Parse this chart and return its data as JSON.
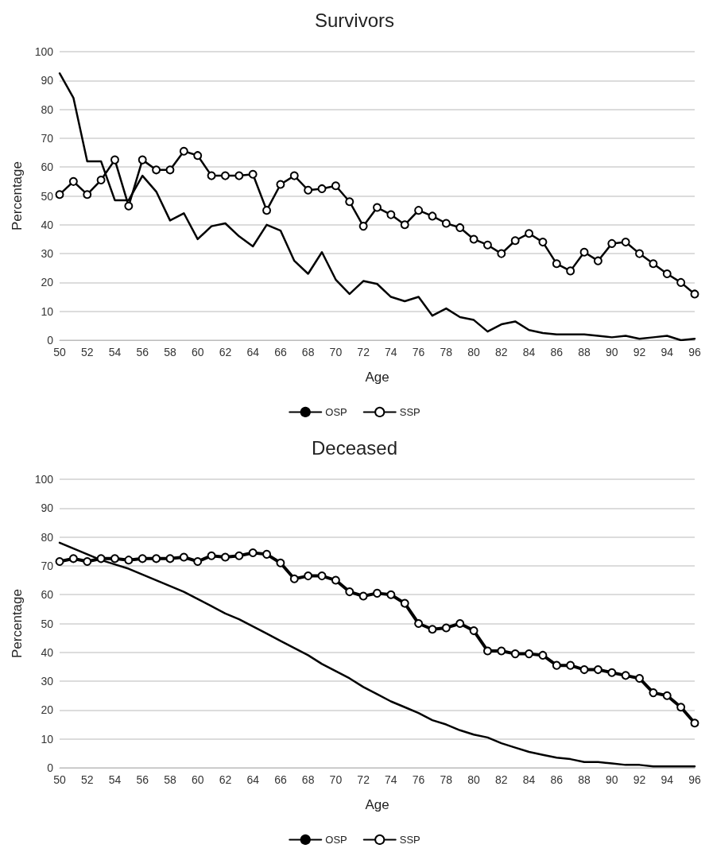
{
  "chart_data": [
    {
      "type": "line",
      "title": "Survivors",
      "xlabel": "Age",
      "ylabel": "Percentage",
      "categories": [
        "50",
        null,
        "52",
        null,
        "54",
        null,
        "56",
        null,
        "58",
        null,
        "60",
        null,
        "62",
        null,
        "64",
        null,
        "66",
        null,
        "68",
        null,
        "70",
        null,
        "72",
        null,
        "74",
        null,
        "76",
        null,
        "78",
        null,
        "80",
        null,
        "82",
        null,
        "84",
        null,
        "86",
        null,
        "88",
        null,
        "90",
        null,
        "92",
        null,
        "94",
        null,
        "96"
      ],
      "ylim": [
        0,
        100
      ],
      "yticks": [
        0,
        10,
        20,
        30,
        40,
        50,
        60,
        70,
        80,
        90,
        100
      ],
      "grid": "y",
      "legend": "bottom",
      "series": [
        {
          "name": "OSP",
          "color": "#000000",
          "marker": "none",
          "values": [
            92.5,
            84,
            62,
            62,
            48.5,
            48.5,
            57,
            51.5,
            41.5,
            44,
            35,
            39.5,
            40.5,
            36,
            32.5,
            40,
            38,
            27.5,
            23,
            30.5,
            21,
            16,
            20.5,
            19.5,
            15,
            13.5,
            15,
            8.5,
            11,
            8,
            7,
            3,
            5.5,
            6.5,
            3.5,
            2.5,
            2,
            2,
            2,
            1.5,
            1,
            1.5,
            0.5,
            1,
            1.5,
            0,
            0.5
          ]
        },
        {
          "name": "SSP",
          "color": "#000000",
          "marker": "circle",
          "values": [
            50.5,
            55,
            50.5,
            55.5,
            62.5,
            46.5,
            62.5,
            59,
            59,
            65.5,
            64,
            57,
            57,
            57,
            57.5,
            45,
            54,
            57,
            52,
            52.5,
            53.5,
            48,
            39.5,
            46,
            43.5,
            40,
            45,
            43,
            40.5,
            39,
            35,
            33,
            30,
            34.5,
            37,
            34,
            26.5,
            24,
            30.5,
            27.5,
            33.5,
            34,
            30,
            26.5,
            23,
            20,
            16
          ]
        }
      ]
    },
    {
      "type": "line",
      "title": "Deceased",
      "xlabel": "Age",
      "ylabel": "Percentage",
      "categories": [
        "50",
        null,
        "52",
        null,
        "54",
        null,
        "56",
        null,
        "58",
        null,
        "60",
        null,
        "62",
        null,
        "64",
        null,
        "66",
        null,
        "68",
        null,
        "70",
        null,
        "72",
        null,
        "74",
        null,
        "76",
        null,
        "78",
        null,
        "80",
        null,
        "82",
        null,
        "84",
        null,
        "86",
        null,
        "88",
        null,
        "90",
        null,
        "92",
        null,
        "94",
        null,
        "96"
      ],
      "ylim": [
        0,
        100
      ],
      "yticks": [
        0,
        10,
        20,
        30,
        40,
        50,
        60,
        70,
        80,
        90,
        100
      ],
      "grid": "y",
      "legend": "bottom",
      "series": [
        {
          "name": "OSP",
          "color": "#000000",
          "marker": "none",
          "values": [
            78,
            76,
            74,
            72,
            70.5,
            69,
            67,
            65,
            63,
            61,
            58.5,
            56,
            53.5,
            51.5,
            49,
            46.5,
            44,
            41.5,
            39,
            36,
            33.5,
            31,
            28,
            25.5,
            23,
            21,
            19,
            16.5,
            15,
            13,
            11.5,
            10.5,
            8.5,
            7,
            5.5,
            4.5,
            3.5,
            3,
            2,
            2,
            1.5,
            1,
            1,
            0.5,
            0.5,
            0.5,
            0.5
          ]
        },
        {
          "name": "SSP",
          "color": "#000000",
          "marker": "circle",
          "values": [
            71.5,
            72.5,
            71.5,
            72.5,
            72.5,
            72,
            72.5,
            72.5,
            72.5,
            73,
            71.5,
            73.5,
            73,
            73.5,
            74.5,
            74,
            71,
            65.5,
            66.5,
            66.5,
            65,
            61,
            59.5,
            60.5,
            60,
            57,
            50,
            48,
            48.5,
            50,
            47.5,
            40.5,
            40.5,
            39.5,
            39.5,
            39,
            35.5,
            35.5,
            34,
            34,
            33,
            32,
            31,
            26,
            25,
            21,
            15.5
          ]
        }
      ]
    }
  ]
}
